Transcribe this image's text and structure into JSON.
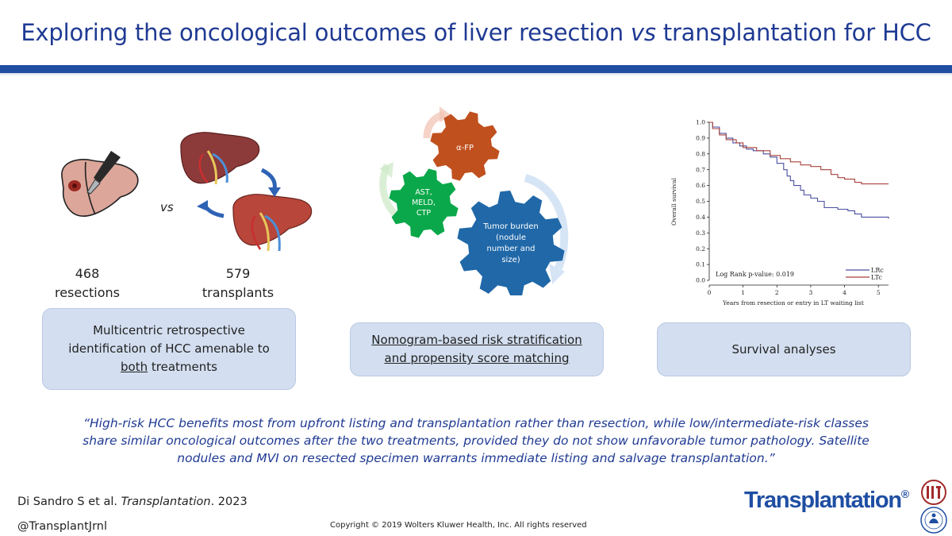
{
  "title": "Exploring the oncological outcomes of liver resection vs transplantation for HCC",
  "title_pre": "Exploring the oncological outcomes of liver resection ",
  "title_vs": "vs",
  "title_post": " transplantation for HCC",
  "vs_label": "vs",
  "resections": {
    "count": "468",
    "label": "resections"
  },
  "transplants": {
    "count": "579",
    "label": "transplants"
  },
  "boxes": {
    "left": {
      "line1": "Multicentric retrospective",
      "line2": "identification of HCC amenable to",
      "line3_u": "both",
      "line3_rest": " treatments"
    },
    "middle": {
      "line1": "Nomogram-based risk stratification",
      "line2": "and propensity score matching"
    },
    "right": {
      "text": "Survival analyses"
    }
  },
  "gears": {
    "afp": "α-FP",
    "labs": [
      "AST,",
      "MELD,",
      "CTP"
    ],
    "tumor": [
      "Tumor burden",
      "(nodule",
      "number and",
      "size)"
    ]
  },
  "colors": {
    "title": "#1f3a93",
    "band": "#1f4ea3",
    "box": "#d3dff0",
    "gear_afp": "#c0501e",
    "gear_labs": "#0aa84a",
    "gear_tumor": "#2068a8",
    "lrc": "#4a4fa0",
    "ltc": "#a8423c"
  },
  "chart_data": {
    "type": "line",
    "ylabel": "Overall survival",
    "xlabel": "Years from resection or entry in LT waiting list",
    "xlim": [
      0,
      5.3
    ],
    "ylim": [
      0,
      1.0
    ],
    "x_ticks": [
      0,
      1,
      2,
      3,
      4,
      5
    ],
    "y_ticks": [
      "0.0",
      "0.1",
      "0.2",
      "0.3",
      "0.4",
      "0.5",
      "0.6",
      "0.7",
      "0.8",
      "0.9",
      "1.0"
    ],
    "annotation": "Log Rank p-value: 0.019",
    "legend_position": "bottom-right",
    "series": [
      {
        "name": "LRc",
        "color": "#4a4fa0",
        "points": [
          [
            0,
            1.0
          ],
          [
            0.1,
            0.97
          ],
          [
            0.3,
            0.93
          ],
          [
            0.5,
            0.9
          ],
          [
            0.7,
            0.87
          ],
          [
            0.9,
            0.85
          ],
          [
            1.1,
            0.83
          ],
          [
            1.3,
            0.82
          ],
          [
            1.6,
            0.8
          ],
          [
            1.8,
            0.78
          ],
          [
            2.0,
            0.74
          ],
          [
            2.2,
            0.7
          ],
          [
            2.3,
            0.66
          ],
          [
            2.4,
            0.63
          ],
          [
            2.5,
            0.6
          ],
          [
            2.7,
            0.57
          ],
          [
            2.8,
            0.54
          ],
          [
            3.0,
            0.52
          ],
          [
            3.2,
            0.5
          ],
          [
            3.4,
            0.46
          ],
          [
            3.8,
            0.45
          ],
          [
            4.1,
            0.44
          ],
          [
            4.3,
            0.42
          ],
          [
            4.5,
            0.4
          ],
          [
            5.3,
            0.39
          ]
        ]
      },
      {
        "name": "LTc",
        "color": "#a8423c",
        "points": [
          [
            0,
            1.0
          ],
          [
            0.1,
            0.96
          ],
          [
            0.3,
            0.92
          ],
          [
            0.5,
            0.89
          ],
          [
            0.8,
            0.87
          ],
          [
            1.0,
            0.84
          ],
          [
            1.4,
            0.82
          ],
          [
            1.8,
            0.79
          ],
          [
            2.1,
            0.77
          ],
          [
            2.4,
            0.75
          ],
          [
            2.7,
            0.73
          ],
          [
            3.0,
            0.72
          ],
          [
            3.3,
            0.7
          ],
          [
            3.6,
            0.67
          ],
          [
            3.8,
            0.65
          ],
          [
            4.0,
            0.64
          ],
          [
            4.3,
            0.62
          ],
          [
            4.5,
            0.61
          ],
          [
            5.3,
            0.61
          ]
        ]
      }
    ]
  },
  "quote": {
    "line1": "“High-risk HCC benefits most from upfront listing and transplantation rather than resection, while low/intermediate-risk classes",
    "line2": "share similar oncological outcomes after the two treatments, provided they do not show unfavorable tumor pathology. Satellite",
    "line3": "nodules and MVI on resected specimen warrants immediate listing and salvage transplantation.”"
  },
  "citation": {
    "pre": "Di Sandro S et al. ",
    "journal": "Transplantation",
    "post": ". 2023"
  },
  "handle": "@TransplantJrnl",
  "copyright": "Copyright © 2019 Wolters Kluwer Health, Inc. All rights reserved",
  "brand": "Transplantation",
  "brand_mark": "®",
  "icons": [
    "liver-resection-icon",
    "scalpel-icon",
    "donor-liver-icon",
    "recipient-liver-icon",
    "cycle-arrow-icon",
    "society-logo-icon",
    "society-seal-icon"
  ]
}
